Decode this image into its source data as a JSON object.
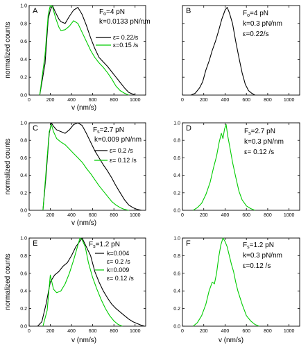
{
  "colors": {
    "black_series": "#000000",
    "green_series": "#00cc00"
  },
  "chart_data": [
    {
      "panel": "A",
      "type": "line",
      "annotation": [
        "F_o=4 pN",
        "k=0.0133 pN/nm"
      ],
      "ylabel": "normalized counts",
      "xlabel": "v (nm/s)",
      "xlim": [
        0,
        1100
      ],
      "ylim": [
        0,
        1.0
      ],
      "xticks": [
        0,
        200,
        400,
        600,
        800,
        1000
      ],
      "yticks": [
        0.0,
        0.2,
        0.4,
        0.6,
        0.8,
        1.0
      ],
      "ytick_labels": [
        "0.0",
        "0.2",
        "0.4",
        "0.6",
        "0.8",
        "1.0"
      ],
      "series": [
        {
          "name": "ε= 0.22/s",
          "color": "black",
          "x": [
            100,
            150,
            180,
            200,
            220,
            250,
            280,
            300,
            340,
            380,
            420,
            460,
            500,
            540,
            580,
            620,
            660,
            700,
            740,
            780,
            820,
            860,
            900,
            940,
            980,
            1000
          ],
          "y": [
            0,
            0.35,
            0.85,
            0.95,
            1.0,
            0.92,
            0.85,
            0.82,
            0.8,
            0.88,
            0.95,
            0.98,
            0.9,
            0.78,
            0.64,
            0.52,
            0.42,
            0.37,
            0.32,
            0.26,
            0.2,
            0.14,
            0.08,
            0.03,
            0.01,
            0
          ]
        },
        {
          "name": "ε=0.15 /s",
          "color": "green",
          "x": [
            100,
            150,
            180,
            200,
            220,
            250,
            280,
            300,
            340,
            380,
            420,
            460,
            500,
            540,
            580,
            620,
            660,
            700,
            740,
            780,
            820,
            860,
            900,
            940
          ],
          "y": [
            0,
            0.45,
            0.9,
            1.0,
            0.99,
            0.86,
            0.76,
            0.72,
            0.73,
            0.77,
            0.83,
            0.8,
            0.7,
            0.6,
            0.5,
            0.42,
            0.36,
            0.31,
            0.25,
            0.18,
            0.1,
            0.05,
            0.02,
            0
          ]
        }
      ]
    },
    {
      "panel": "B",
      "type": "line",
      "annotation": [
        "F_o=4 pN",
        "k=0.3 pN/nm",
        "ε=0.22/s"
      ],
      "ylabel": "",
      "xlabel": "",
      "xlim": [
        0,
        1100
      ],
      "ylim": [
        0,
        1.0
      ],
      "xticks": [
        0,
        200,
        400,
        600,
        800,
        1000
      ],
      "yticks": [
        0.0,
        0.2,
        0.4,
        0.6,
        0.8,
        1.0
      ],
      "ytick_labels": [],
      "series": [
        {
          "name": "",
          "color": "black",
          "x": [
            80,
            120,
            160,
            190,
            220,
            250,
            280,
            310,
            340,
            370,
            400,
            420,
            440,
            470,
            500,
            530,
            560,
            590,
            620,
            650,
            680
          ],
          "y": [
            0,
            0.02,
            0.08,
            0.15,
            0.28,
            0.38,
            0.5,
            0.6,
            0.72,
            0.85,
            0.95,
            0.98,
            0.92,
            0.8,
            0.6,
            0.42,
            0.25,
            0.12,
            0.05,
            0.02,
            0
          ]
        }
      ]
    },
    {
      "panel": "C",
      "type": "line",
      "annotation": [
        "F_s=2.7 pN",
        "k=0.009 pN/nm"
      ],
      "ylabel": "normalized counts",
      "xlabel": "v (nm/s)",
      "xlim": [
        0,
        1100
      ],
      "ylim": [
        0,
        1.0
      ],
      "xticks": [
        0,
        200,
        400,
        600,
        800,
        1000
      ],
      "yticks": [
        0.0,
        0.2,
        0.4,
        0.6,
        0.8,
        1.0
      ],
      "ytick_labels": [
        "0.0",
        "0.2",
        "0.4",
        "0.6",
        "0.8",
        "1.0"
      ],
      "series": [
        {
          "name": "ε= 0.2 /s",
          "color": "black",
          "x": [
            130,
            160,
            190,
            210,
            230,
            260,
            300,
            340,
            380,
            420,
            460,
            500,
            540,
            580,
            620,
            660,
            700,
            740,
            780,
            820,
            860,
            900,
            940,
            980,
            1020,
            1060
          ],
          "y": [
            0,
            0.4,
            0.88,
            1.0,
            0.96,
            0.92,
            0.9,
            0.88,
            0.92,
            0.98,
            1.0,
            0.97,
            0.88,
            0.78,
            0.68,
            0.6,
            0.52,
            0.45,
            0.37,
            0.28,
            0.2,
            0.12,
            0.06,
            0.03,
            0.01,
            0
          ]
        },
        {
          "name": "ε= 0.12 /s",
          "color": "green",
          "x": [
            130,
            160,
            190,
            210,
            230,
            260,
            300,
            340,
            380,
            420,
            460,
            500,
            540,
            580,
            620,
            660,
            700,
            740,
            780,
            820,
            860,
            900,
            940
          ],
          "y": [
            0,
            0.45,
            0.9,
            0.98,
            0.9,
            0.82,
            0.78,
            0.75,
            0.7,
            0.65,
            0.6,
            0.55,
            0.48,
            0.42,
            0.35,
            0.28,
            0.22,
            0.16,
            0.1,
            0.06,
            0.03,
            0.01,
            0
          ]
        }
      ]
    },
    {
      "panel": "D",
      "type": "line",
      "annotation": [
        "F_s=2.7 pN",
        "k=0.3 pN/nm",
        "ε= 0.12 /s"
      ],
      "ylabel": "",
      "xlabel": "",
      "xlim": [
        0,
        1100
      ],
      "ylim": [
        0,
        1.0
      ],
      "xticks": [
        0,
        200,
        400,
        600,
        800,
        1000
      ],
      "yticks": [
        0.0,
        0.2,
        0.4,
        0.6,
        0.8,
        1.0
      ],
      "ytick_labels": [
        "0.0",
        "0.2",
        "0.4",
        "0.6",
        "0.8",
        "1.0"
      ],
      "series": [
        {
          "name": "",
          "color": "green",
          "x": [
            100,
            140,
            180,
            220,
            260,
            290,
            320,
            345,
            365,
            380,
            395,
            410,
            425,
            445,
            470,
            500,
            530,
            560,
            600,
            640,
            680
          ],
          "y": [
            0,
            0.03,
            0.08,
            0.18,
            0.32,
            0.48,
            0.62,
            0.78,
            0.88,
            0.82,
            0.93,
            0.98,
            0.85,
            0.72,
            0.55,
            0.38,
            0.22,
            0.12,
            0.05,
            0.02,
            0
          ]
        }
      ]
    },
    {
      "panel": "E",
      "type": "line",
      "annotation": [
        "F_s=1.2 pN"
      ],
      "ylabel": "normalized counts",
      "xlabel": "v (nm/s)",
      "xlim": [
        0,
        1100
      ],
      "ylim": [
        0,
        1.0
      ],
      "xticks": [
        0,
        200,
        400,
        600,
        800,
        1000
      ],
      "yticks": [
        0.0,
        0.2,
        0.4,
        0.6,
        0.8,
        1.0
      ],
      "ytick_labels": [
        "0.0",
        "0.2",
        "0.4",
        "0.6",
        "0.8",
        "1.0"
      ],
      "legend_entries": [
        "k=0.004",
        "ε= 0.2 /s",
        "k=0.009",
        "ε= 0.12 /s"
      ],
      "series": [
        {
          "name": "k=0.004 ε= 0.2 /s",
          "color": "black",
          "x": [
            80,
            120,
            160,
            200,
            240,
            280,
            320,
            360,
            400,
            440,
            470,
            500,
            540,
            580,
            620,
            660,
            700,
            740,
            780,
            820,
            860,
            900,
            940,
            980,
            1020,
            1060,
            1090
          ],
          "y": [
            0,
            0.05,
            0.25,
            0.5,
            0.58,
            0.62,
            0.68,
            0.72,
            0.8,
            0.9,
            0.95,
            1.0,
            0.9,
            0.8,
            0.62,
            0.5,
            0.4,
            0.32,
            0.25,
            0.2,
            0.16,
            0.12,
            0.08,
            0.05,
            0.03,
            0.01,
            0
          ]
        },
        {
          "name": "k=0.009 ε= 0.12 /s",
          "color": "green",
          "x": [
            130,
            170,
            200,
            230,
            260,
            300,
            340,
            380,
            420,
            460,
            480,
            500,
            530,
            560,
            600,
            640,
            680,
            720,
            760,
            800,
            840,
            880
          ],
          "y": [
            0,
            0.18,
            0.58,
            0.42,
            0.38,
            0.4,
            0.48,
            0.6,
            0.75,
            0.92,
            1.0,
            0.98,
            0.9,
            0.72,
            0.55,
            0.42,
            0.3,
            0.2,
            0.12,
            0.06,
            0.02,
            0
          ]
        }
      ]
    },
    {
      "panel": "F",
      "type": "line",
      "annotation": [
        "F_s=1.2 pN",
        "k=0.3 pN/nm",
        "ε=0.12 /s"
      ],
      "ylabel": "",
      "xlabel": "v (nm/s)",
      "xlim": [
        0,
        1100
      ],
      "ylim": [
        0,
        1.0
      ],
      "xticks": [
        0,
        200,
        400,
        600,
        800,
        1000
      ],
      "yticks": [
        0.0,
        0.2,
        0.4,
        0.6,
        0.8,
        1.0
      ],
      "ytick_labels": [
        "0.0",
        "0.2",
        "0.4",
        "0.6",
        "0.8",
        "1.0"
      ],
      "series": [
        {
          "name": "",
          "color": "green",
          "x": [
            100,
            140,
            180,
            220,
            250,
            280,
            300,
            320,
            340,
            360,
            380,
            400,
            420,
            440,
            460,
            480,
            500,
            520,
            560,
            600,
            640,
            680,
            720
          ],
          "y": [
            0,
            0.04,
            0.12,
            0.25,
            0.4,
            0.5,
            0.48,
            0.6,
            0.78,
            0.92,
            1.0,
            0.96,
            0.9,
            0.8,
            0.7,
            0.62,
            0.5,
            0.4,
            0.25,
            0.12,
            0.06,
            0.02,
            0
          ]
        }
      ]
    }
  ]
}
